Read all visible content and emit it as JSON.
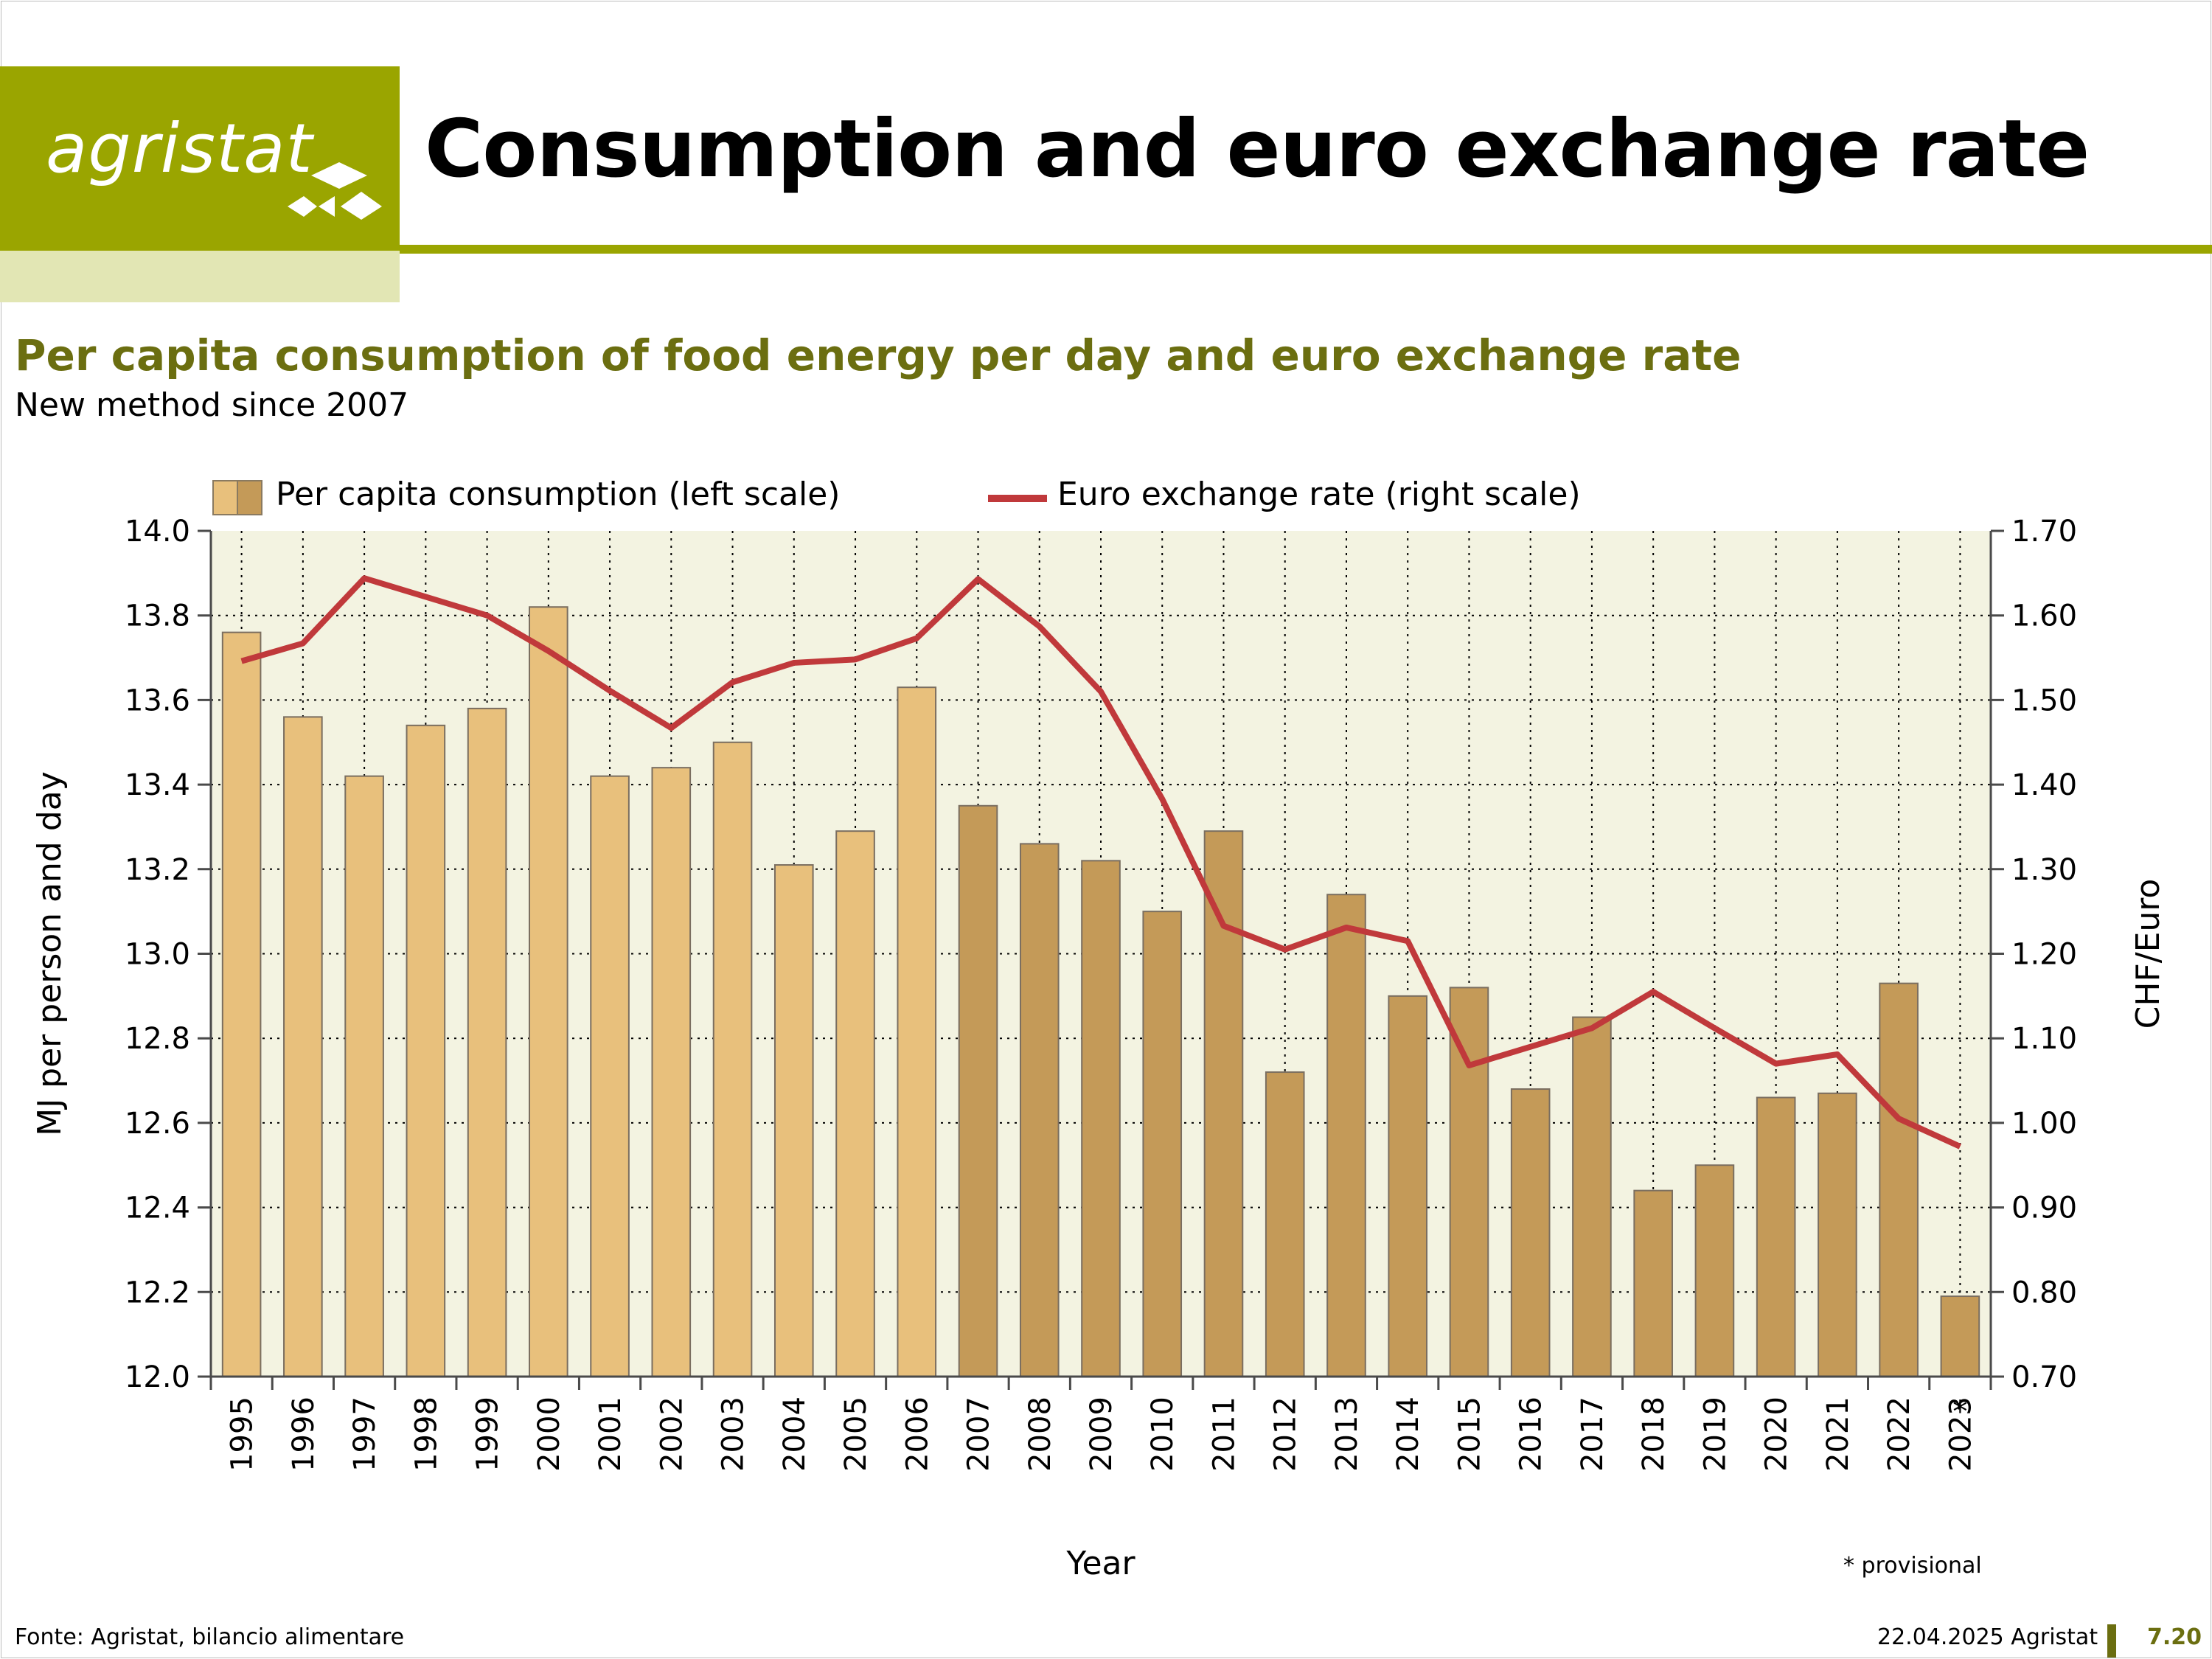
{
  "header": {
    "logo_text": "agristat",
    "title": "Consumption and euro exchange rate"
  },
  "colors": {
    "brand": "#9aa500",
    "brand_light": "#e2e6b4",
    "subtitle": "#6b6e10",
    "plot_bg": "#f3f3e1",
    "bar_old": "#e8c07c",
    "bar_new": "#c49a58",
    "line": "#c0393b"
  },
  "subtitle": "Per capita consumption of food energy per day and euro exchange rate",
  "subsubtitle": "New method since 2007",
  "chart_data": {
    "type": "bar",
    "categories": [
      "1995",
      "1996",
      "1997",
      "1998",
      "1999",
      "2000",
      "2001",
      "2002",
      "2003",
      "2004",
      "2005",
      "2006",
      "2007",
      "2008",
      "2009",
      "2010",
      "2011",
      "2012",
      "2013",
      "2014",
      "2015",
      "2016",
      "2017",
      "2018",
      "2019",
      "2020",
      "2021",
      "2022",
      "2023"
    ],
    "category_marks": [
      "",
      "",
      "",
      "",
      "",
      "",
      "",
      "",
      "",
      "",
      "",
      "",
      "",
      "",
      "",
      "",
      "",
      "",
      "",
      "",
      "",
      "",
      "",
      "",
      "",
      "",
      "",
      "",
      "*"
    ],
    "series": [
      {
        "name": "Per capita consumption (left scale)",
        "type": "bar",
        "axis": "left",
        "values": [
          13.76,
          13.56,
          13.42,
          13.54,
          13.58,
          13.82,
          13.42,
          13.44,
          13.5,
          13.21,
          13.29,
          13.63,
          13.35,
          13.26,
          13.22,
          13.1,
          13.29,
          12.72,
          13.14,
          12.9,
          12.92,
          12.68,
          12.85,
          12.44,
          12.5,
          12.66,
          12.67,
          12.93,
          12.19
        ],
        "new_method_from": "2007"
      },
      {
        "name": "Euro exchange rate (right scale)",
        "type": "line",
        "axis": "right",
        "values": [
          1.546,
          1.567,
          1.644,
          1.622,
          1.6,
          1.558,
          1.511,
          1.467,
          1.521,
          1.544,
          1.548,
          1.573,
          1.643,
          1.587,
          1.51,
          1.383,
          1.233,
          1.205,
          1.231,
          1.215,
          1.068,
          1.09,
          1.112,
          1.155,
          1.112,
          1.07,
          1.081,
          1.005,
          0.972
        ]
      }
    ],
    "xlabel": "Year",
    "ylabel": "MJ per person and day",
    "ylabel_right": "CHF/Euro",
    "ylim": [
      12.0,
      14.0
    ],
    "ylim_right": [
      0.7,
      1.7
    ],
    "yticks": [
      "12.0",
      "12.2",
      "12.4",
      "12.6",
      "12.8",
      "13.0",
      "13.2",
      "13.4",
      "13.6",
      "13.8",
      "14.0"
    ],
    "yticks_right": [
      "0.70",
      "0.80",
      "0.90",
      "1.00",
      "1.10",
      "1.20",
      "1.30",
      "1.40",
      "1.50",
      "1.60",
      "1.70"
    ],
    "grid": true,
    "legend_position": "top"
  },
  "notes": {
    "provisional": "* provisional"
  },
  "footer": {
    "source": "Fonte: Agristat, bilancio alimentare",
    "date": "22.04.2025 Agristat",
    "page": "7.20"
  }
}
